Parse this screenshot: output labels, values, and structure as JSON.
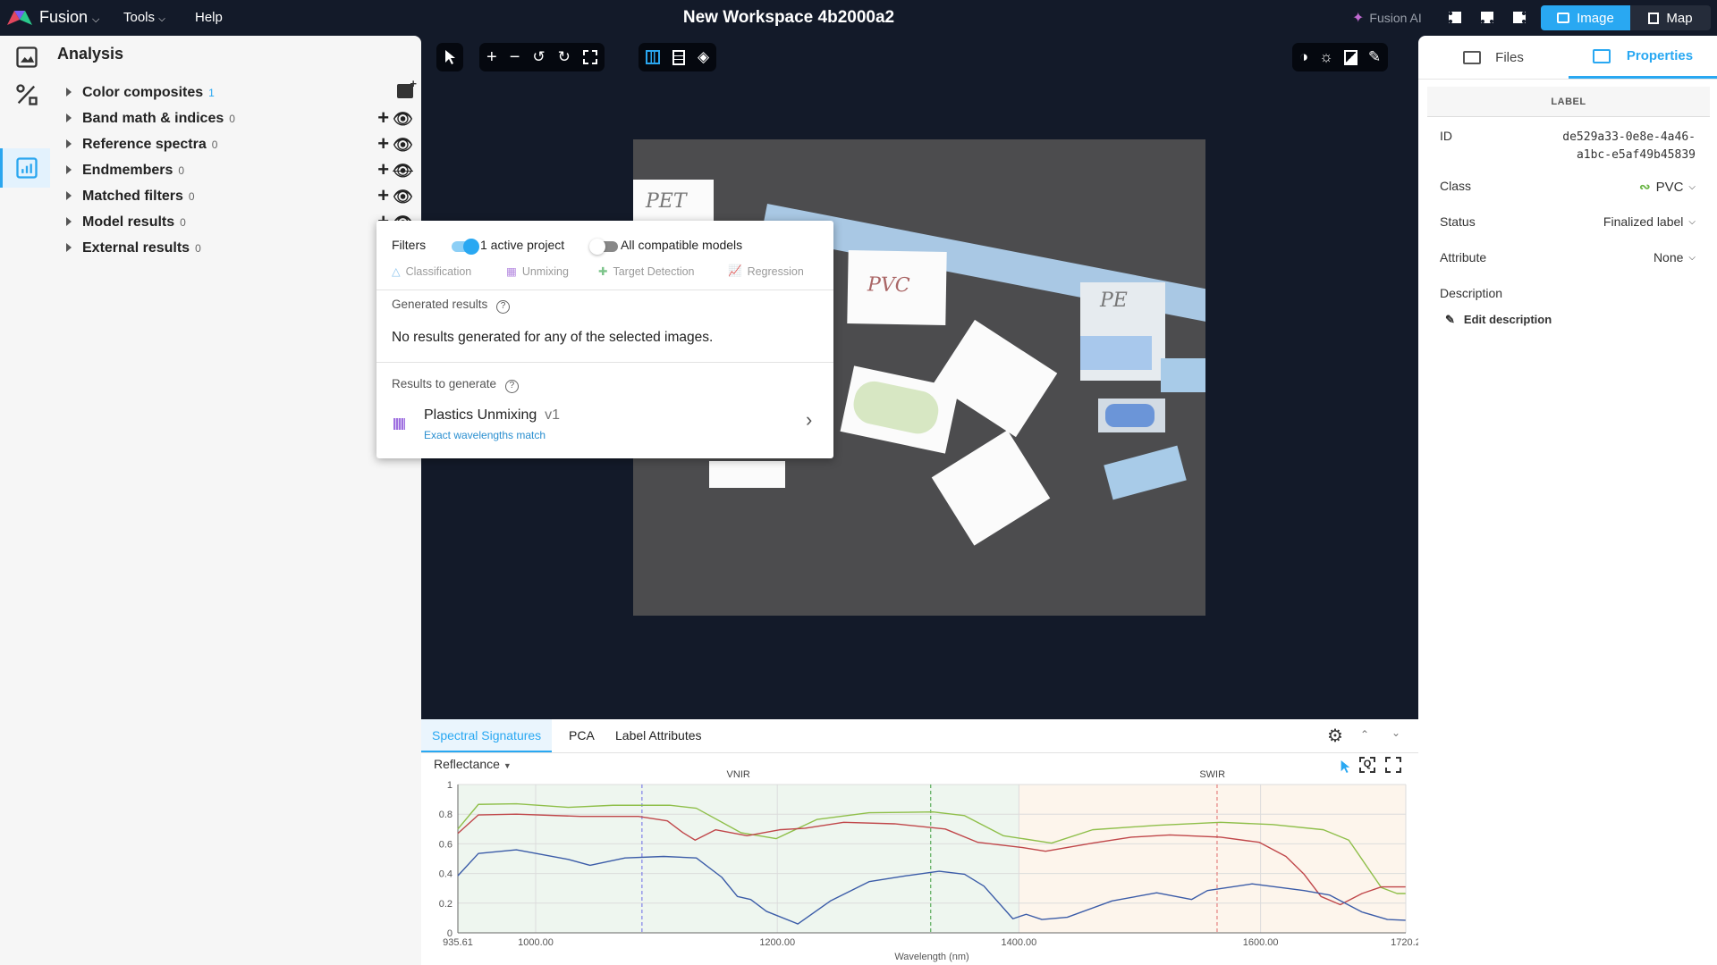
{
  "topbar": {
    "app_name": "Fusion",
    "menu": [
      "Tools",
      "Help"
    ],
    "title": "New Workspace 4b2000a2",
    "fusion_ai": "Fusion AI",
    "view_image": "Image",
    "view_map": "Map",
    "accent": "#29a8f2"
  },
  "sidebar": {
    "title": "Analysis",
    "items": [
      {
        "label": "Color composites",
        "count": "1",
        "icon": "add-image-icon"
      },
      {
        "label": "Band math & indices",
        "count": "0",
        "visible": true
      },
      {
        "label": "Reference spectra",
        "count": "0",
        "visible": true
      },
      {
        "label": "Endmembers",
        "count": "0",
        "visible": false
      },
      {
        "label": "Matched filters",
        "count": "0",
        "visible": true
      },
      {
        "label": "Model results",
        "count": "0",
        "visible": true
      },
      {
        "label": "External results",
        "count": "0"
      }
    ]
  },
  "photo": {
    "labels": [
      "PET",
      "PVC",
      "PE"
    ]
  },
  "popup": {
    "filters_label": "Filters",
    "toggle_active": {
      "label": "1 active project",
      "on": true
    },
    "toggle_all": {
      "label": "All compatible models",
      "on": false
    },
    "categories": [
      "Classification",
      "Unmixing",
      "Target Detection",
      "Regression"
    ],
    "generated_title": "Generated results",
    "generated_empty": "No results generated for any of the selected images.",
    "to_generate_title": "Results to generate",
    "model": {
      "name": "Plastics Unmixing",
      "version": "v1",
      "match": "Exact wavelengths match"
    }
  },
  "right": {
    "tabs": [
      "Files",
      "Properties"
    ],
    "active_tab": "Properties",
    "section": "LABEL",
    "id_label": "ID",
    "id_value_1": "de529a33-0e8e-4a46-",
    "id_value_2": "a1bc-e5af49b45839",
    "class_label": "Class",
    "class_value": "PVC",
    "status_label": "Status",
    "status_value": "Finalized label",
    "attribute_label": "Attribute",
    "attribute_value": "None",
    "description_label": "Description",
    "edit_description": "Edit description"
  },
  "bottom": {
    "tabs": [
      "Spectral Signatures",
      "PCA",
      "Label Attributes"
    ],
    "active_tab": "Spectral Signatures",
    "mode": "Reflectance"
  },
  "chart_data": {
    "type": "line",
    "xlabel": "Wavelength (nm)",
    "ylabel": "",
    "xlim": [
      935.61,
      1720.2
    ],
    "ylim": [
      0,
      1
    ],
    "x_ticks": [
      "935.61",
      "1000.00",
      "1200.00",
      "1400.00",
      "1600.00",
      "1720.2"
    ],
    "x_tick_values": [
      935.61,
      1000,
      1200,
      1400,
      1600,
      1720.2
    ],
    "y_ticks": [
      "0",
      "0.2",
      "0.4",
      "0.6",
      "0.8",
      "1"
    ],
    "grid": true,
    "regions": [
      {
        "name": "VNIR",
        "from": 935.61,
        "to": 1400,
        "color": "#eef6ef"
      },
      {
        "name": "SWIR",
        "from": 1400,
        "to": 1720.2,
        "color": "#fdf5ec"
      }
    ],
    "markers": [
      {
        "x": 1088,
        "color": "#6b6be6"
      },
      {
        "x": 1327,
        "color": "#3f9f3f"
      },
      {
        "x": 1564,
        "color": "#e06a6a"
      }
    ],
    "series": [
      {
        "color": "#8fbf4a",
        "points": [
          [
            935.6,
            0.7
          ],
          [
            952.6,
            0.866
          ],
          [
            984,
            0.87
          ],
          [
            1027,
            0.846
          ],
          [
            1064,
            0.86
          ],
          [
            1111,
            0.86
          ],
          [
            1133,
            0.84
          ],
          [
            1170,
            0.675
          ],
          [
            1199,
            0.635
          ],
          [
            1233,
            0.765
          ],
          [
            1276,
            0.81
          ],
          [
            1329,
            0.815
          ],
          [
            1355,
            0.79
          ],
          [
            1387,
            0.655
          ],
          [
            1427,
            0.605
          ],
          [
            1461,
            0.695
          ],
          [
            1514,
            0.725
          ],
          [
            1567,
            0.745
          ],
          [
            1610,
            0.73
          ],
          [
            1652,
            0.695
          ],
          [
            1673,
            0.625
          ],
          [
            1700,
            0.305
          ],
          [
            1713,
            0.265
          ],
          [
            1720,
            0.265
          ]
        ]
      },
      {
        "color": "#c0474a",
        "points": [
          [
            935.6,
            0.67
          ],
          [
            952.6,
            0.795
          ],
          [
            984,
            0.8
          ],
          [
            1037,
            0.785
          ],
          [
            1085,
            0.785
          ],
          [
            1109,
            0.755
          ],
          [
            1122,
            0.675
          ],
          [
            1132,
            0.625
          ],
          [
            1149,
            0.695
          ],
          [
            1175,
            0.655
          ],
          [
            1202,
            0.695
          ],
          [
            1223,
            0.705
          ],
          [
            1255,
            0.745
          ],
          [
            1297,
            0.735
          ],
          [
            1339,
            0.7
          ],
          [
            1366,
            0.61
          ],
          [
            1403,
            0.575
          ],
          [
            1422,
            0.55
          ],
          [
            1461,
            0.605
          ],
          [
            1493,
            0.645
          ],
          [
            1525,
            0.66
          ],
          [
            1567,
            0.645
          ],
          [
            1599,
            0.61
          ],
          [
            1621,
            0.515
          ],
          [
            1636,
            0.395
          ],
          [
            1650,
            0.245
          ],
          [
            1666,
            0.19
          ],
          [
            1684,
            0.265
          ],
          [
            1700,
            0.31
          ],
          [
            1720,
            0.31
          ]
        ]
      },
      {
        "color": "#3b5ca8",
        "points": [
          [
            935.6,
            0.385
          ],
          [
            952.6,
            0.535
          ],
          [
            984,
            0.56
          ],
          [
            1027,
            0.495
          ],
          [
            1045,
            0.455
          ],
          [
            1074,
            0.505
          ],
          [
            1106,
            0.515
          ],
          [
            1133,
            0.505
          ],
          [
            1154,
            0.375
          ],
          [
            1167,
            0.245
          ],
          [
            1178,
            0.225
          ],
          [
            1191,
            0.145
          ],
          [
            1217,
            0.06
          ],
          [
            1244,
            0.215
          ],
          [
            1276,
            0.345
          ],
          [
            1307,
            0.385
          ],
          [
            1334,
            0.415
          ],
          [
            1355,
            0.395
          ],
          [
            1371,
            0.315
          ],
          [
            1395,
            0.095
          ],
          [
            1406,
            0.125
          ],
          [
            1419,
            0.09
          ],
          [
            1440,
            0.105
          ],
          [
            1477,
            0.215
          ],
          [
            1514,
            0.27
          ],
          [
            1543,
            0.225
          ],
          [
            1556,
            0.285
          ],
          [
            1593,
            0.33
          ],
          [
            1636,
            0.285
          ],
          [
            1657,
            0.255
          ],
          [
            1684,
            0.14
          ],
          [
            1705,
            0.09
          ],
          [
            1720,
            0.085
          ]
        ]
      }
    ]
  }
}
